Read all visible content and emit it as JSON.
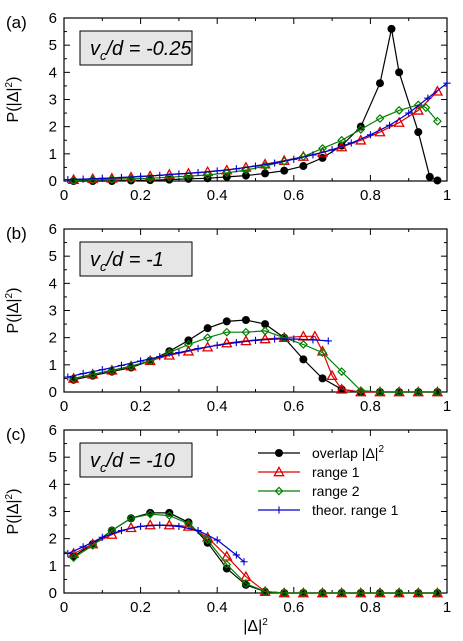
{
  "chart_data": [
    {
      "type": "line",
      "panel_label": "(a)",
      "annotation": {
        "var": "v",
        "sub": "c",
        "rest": "/d = -0.25"
      },
      "ylabel": {
        "main": "P(|Δ|",
        "sup": "2",
        "end": ")"
      },
      "xlim": [
        0,
        1
      ],
      "ylim": [
        0,
        6
      ],
      "xticks": [
        "0",
        "0.2",
        "0.4",
        "0.6",
        "0.8",
        "1"
      ],
      "yticks": [
        "0",
        "1",
        "2",
        "3",
        "4",
        "5",
        "6"
      ],
      "grid": false,
      "series": [
        {
          "key": "overlap",
          "color": "#000000",
          "marker": "filled-circle",
          "x": [
            0.025,
            0.075,
            0.125,
            0.175,
            0.225,
            0.275,
            0.325,
            0.375,
            0.425,
            0.475,
            0.525,
            0.575,
            0.625,
            0.675,
            0.725,
            0.775,
            0.825,
            0.855,
            0.875,
            0.925,
            0.955,
            0.975
          ],
          "y": [
            0.0,
            0.0,
            0.0,
            0.02,
            0.03,
            0.05,
            0.08,
            0.1,
            0.15,
            0.2,
            0.28,
            0.38,
            0.55,
            0.85,
            1.3,
            2.0,
            3.6,
            5.6,
            4.0,
            1.8,
            0.15,
            0.02
          ]
        },
        {
          "key": "range1",
          "color": "#e00000",
          "marker": "open-triangle",
          "x": [
            0.025,
            0.075,
            0.125,
            0.175,
            0.225,
            0.275,
            0.325,
            0.375,
            0.425,
            0.475,
            0.525,
            0.575,
            0.625,
            0.675,
            0.725,
            0.775,
            0.825,
            0.875,
            0.925,
            0.975
          ],
          "y": [
            0.05,
            0.08,
            0.1,
            0.14,
            0.18,
            0.24,
            0.28,
            0.34,
            0.4,
            0.5,
            0.62,
            0.75,
            0.9,
            1.05,
            1.25,
            1.5,
            1.8,
            2.15,
            2.6,
            3.3
          ]
        },
        {
          "key": "range2",
          "color": "#008000",
          "marker": "open-diamond",
          "x": [
            0.025,
            0.075,
            0.125,
            0.175,
            0.225,
            0.275,
            0.325,
            0.375,
            0.425,
            0.475,
            0.525,
            0.575,
            0.625,
            0.675,
            0.725,
            0.775,
            0.825,
            0.875,
            0.925,
            0.945,
            0.975
          ],
          "y": [
            0.02,
            0.04,
            0.06,
            0.08,
            0.1,
            0.14,
            0.18,
            0.22,
            0.3,
            0.4,
            0.55,
            0.72,
            0.9,
            1.2,
            1.5,
            1.9,
            2.3,
            2.6,
            2.8,
            2.7,
            2.2
          ]
        },
        {
          "key": "theor",
          "color": "#0000cc",
          "marker": "plus",
          "x": [
            0.01,
            0.05,
            0.1,
            0.15,
            0.2,
            0.25,
            0.3,
            0.35,
            0.4,
            0.45,
            0.5,
            0.55,
            0.6,
            0.65,
            0.7,
            0.75,
            0.8,
            0.85,
            0.9,
            0.95,
            1.0
          ],
          "y": [
            0.05,
            0.07,
            0.1,
            0.13,
            0.17,
            0.21,
            0.26,
            0.31,
            0.37,
            0.45,
            0.55,
            0.66,
            0.8,
            0.96,
            1.15,
            1.4,
            1.7,
            2.05,
            2.5,
            3.05,
            3.6
          ]
        }
      ]
    },
    {
      "type": "line",
      "panel_label": "(b)",
      "annotation": {
        "var": "v",
        "sub": "c",
        "rest": "/d = -1"
      },
      "ylabel": {
        "main": "P(|Δ|",
        "sup": "2",
        "end": ")"
      },
      "xlim": [
        0,
        1
      ],
      "ylim": [
        0,
        6
      ],
      "xticks": [
        "0",
        "0.2",
        "0.4",
        "0.6",
        "0.8",
        "1"
      ],
      "yticks": [
        "0",
        "1",
        "2",
        "3",
        "4",
        "5",
        "6"
      ],
      "grid": false,
      "series": [
        {
          "key": "overlap",
          "color": "#000000",
          "marker": "filled-circle",
          "x": [
            0.025,
            0.075,
            0.125,
            0.175,
            0.225,
            0.275,
            0.325,
            0.375,
            0.425,
            0.475,
            0.525,
            0.575,
            0.625,
            0.675,
            0.725,
            0.775,
            0.825,
            0.875,
            0.925,
            0.975
          ],
          "y": [
            0.45,
            0.6,
            0.75,
            0.9,
            1.15,
            1.5,
            1.9,
            2.35,
            2.6,
            2.65,
            2.5,
            2.0,
            1.2,
            0.5,
            0.1,
            0.0,
            0.0,
            0.0,
            0.0,
            0.0
          ]
        },
        {
          "key": "range1",
          "color": "#e00000",
          "marker": "open-triangle",
          "x": [
            0.025,
            0.075,
            0.125,
            0.175,
            0.225,
            0.275,
            0.325,
            0.375,
            0.425,
            0.475,
            0.525,
            0.575,
            0.625,
            0.655,
            0.675,
            0.7,
            0.725,
            0.775,
            0.825,
            0.875,
            0.925,
            0.975
          ],
          "y": [
            0.5,
            0.65,
            0.8,
            0.95,
            1.15,
            1.35,
            1.5,
            1.65,
            1.8,
            1.88,
            1.95,
            2.0,
            2.05,
            2.05,
            1.5,
            0.6,
            0.1,
            0.0,
            0.0,
            0.0,
            0.0,
            0.0
          ]
        },
        {
          "key": "range2",
          "color": "#008000",
          "marker": "open-diamond",
          "x": [
            0.025,
            0.075,
            0.125,
            0.175,
            0.225,
            0.275,
            0.325,
            0.375,
            0.425,
            0.475,
            0.525,
            0.575,
            0.625,
            0.675,
            0.725,
            0.775,
            0.825,
            0.875,
            0.925,
            0.975
          ],
          "y": [
            0.5,
            0.65,
            0.8,
            0.95,
            1.15,
            1.45,
            1.75,
            2.0,
            2.2,
            2.2,
            2.25,
            2.0,
            1.75,
            1.45,
            0.75,
            0.05,
            0.0,
            0.0,
            0.0,
            0.0
          ]
        },
        {
          "key": "theor",
          "color": "#0000cc",
          "marker": "plus",
          "x": [
            0.01,
            0.05,
            0.1,
            0.15,
            0.2,
            0.25,
            0.3,
            0.35,
            0.4,
            0.45,
            0.5,
            0.55,
            0.6,
            0.65,
            0.69
          ],
          "y": [
            0.55,
            0.68,
            0.82,
            0.98,
            1.14,
            1.3,
            1.45,
            1.6,
            1.72,
            1.82,
            1.9,
            1.95,
            1.95,
            1.92,
            1.88
          ]
        }
      ]
    },
    {
      "type": "line",
      "panel_label": "(c)",
      "annotation": {
        "var": "v",
        "sub": "c",
        "rest": "/d = -10"
      },
      "ylabel": {
        "main": "P(|Δ|",
        "sup": "2",
        "end": ")"
      },
      "xlabel": {
        "main": "|Δ|",
        "sup": "2"
      },
      "xlim": [
        0,
        1
      ],
      "ylim": [
        0,
        6
      ],
      "xticks": [
        "0",
        "0.2",
        "0.4",
        "0.6",
        "0.8",
        "1"
      ],
      "yticks": [
        "0",
        "1",
        "2",
        "3",
        "4",
        "5",
        "6"
      ],
      "grid": false,
      "legend": {
        "position": "top-right",
        "entries": [
          {
            "key": "overlap",
            "text": "overlap |Δ|",
            "sup": "2"
          },
          {
            "key": "range1",
            "text": "range 1",
            "sup": ""
          },
          {
            "key": "range2",
            "text": "range 2",
            "sup": ""
          },
          {
            "key": "theor",
            "text": "theor. range 1",
            "sup": ""
          }
        ]
      },
      "series": [
        {
          "key": "overlap",
          "color": "#000000",
          "marker": "filled-circle",
          "x": [
            0.025,
            0.075,
            0.125,
            0.175,
            0.225,
            0.275,
            0.325,
            0.375,
            0.425,
            0.475,
            0.525,
            0.575,
            0.625,
            0.675,
            0.725,
            0.775,
            0.825,
            0.875,
            0.925,
            0.975
          ],
          "y": [
            1.35,
            1.8,
            2.3,
            2.75,
            2.95,
            2.95,
            2.6,
            1.85,
            0.9,
            0.3,
            0.05,
            0.0,
            0.0,
            0.0,
            0.0,
            0.0,
            0.0,
            0.0,
            0.0,
            0.0
          ]
        },
        {
          "key": "range1",
          "color": "#e00000",
          "marker": "open-triangle",
          "x": [
            0.025,
            0.075,
            0.125,
            0.175,
            0.225,
            0.275,
            0.325,
            0.375,
            0.425,
            0.475,
            0.525,
            0.575,
            0.625,
            0.675,
            0.725,
            0.775,
            0.825,
            0.875,
            0.925,
            0.975
          ],
          "y": [
            1.45,
            1.8,
            2.15,
            2.4,
            2.5,
            2.5,
            2.45,
            2.05,
            1.35,
            0.6,
            0.05,
            0.0,
            0.0,
            0.0,
            0.0,
            0.0,
            0.0,
            0.0,
            0.0,
            0.0
          ]
        },
        {
          "key": "range2",
          "color": "#008000",
          "marker": "open-diamond",
          "x": [
            0.025,
            0.075,
            0.125,
            0.175,
            0.225,
            0.275,
            0.325,
            0.375,
            0.425,
            0.475,
            0.525,
            0.575,
            0.625,
            0.675,
            0.725,
            0.775,
            0.825,
            0.875,
            0.925,
            0.975
          ],
          "y": [
            1.3,
            1.75,
            2.3,
            2.75,
            2.9,
            2.85,
            2.55,
            1.95,
            1.05,
            0.35,
            0.05,
            0.0,
            0.0,
            0.0,
            0.0,
            0.0,
            0.0,
            0.0,
            0.0,
            0.0
          ]
        },
        {
          "key": "theor",
          "color": "#0000cc",
          "marker": "plus",
          "x": [
            0.01,
            0.05,
            0.1,
            0.15,
            0.2,
            0.25,
            0.3,
            0.35,
            0.4,
            0.45,
            0.47
          ],
          "y": [
            1.45,
            1.7,
            2.05,
            2.3,
            2.45,
            2.5,
            2.45,
            2.3,
            1.95,
            1.4,
            1.15
          ]
        }
      ]
    }
  ]
}
